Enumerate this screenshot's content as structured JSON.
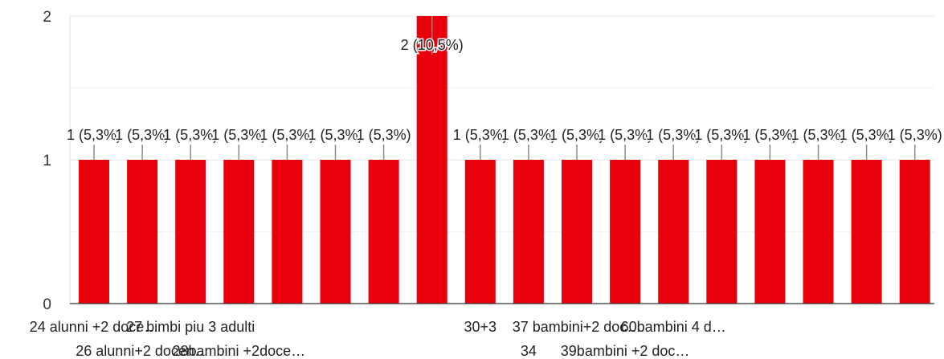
{
  "chart_data": {
    "type": "bar",
    "categories": [
      "24 alunni +2 doce…",
      "26 alunni+2 docen…",
      "27 bimbi piu 3 adulti",
      "28bambini +2doce…",
      "",
      "",
      "",
      "",
      "30+3",
      "34",
      "37 bambini+2 doc…",
      "39bambini +2 doc…",
      "60bambini 4 d…",
      "",
      "",
      "",
      "",
      ""
    ],
    "values": [
      1,
      1,
      1,
      1,
      1,
      1,
      1,
      2,
      1,
      1,
      1,
      1,
      1,
      1,
      1,
      1,
      1,
      1
    ],
    "data_labels": [
      "1 (5,3%)",
      "1 (5,3%)",
      "1 (5,3%)",
      "1 (5,3%)",
      "1 (5,3%)",
      "1 (5,3%)",
      "1 (5,3%)",
      "2 (10,5%)",
      "1 (5,3%)",
      "1 (5,3%)",
      "1 (5,3%)",
      "1 (5,3%)",
      "1 (5,3%)",
      "1 (5,3%)",
      "1 (5,3%)",
      "1 (5,3%)",
      "1 (5,3%)",
      "1 (5,3%)"
    ],
    "x_tick_labels": [
      "24 alunni +2 doce…",
      "26 alunni+2 docen…",
      "27 bimbi piu 3 adulti",
      "28bambini +2doce…",
      "30+3",
      "34",
      "37 bambini+2 doc…",
      "39bambini +2 doc…",
      "60bambini 4 d…"
    ],
    "y_ticks": [
      0,
      1,
      2
    ],
    "ylim": [
      0,
      2
    ],
    "grid": true,
    "bar_color": "#e8000b",
    "title": "",
    "xlabel": "",
    "ylabel": ""
  }
}
